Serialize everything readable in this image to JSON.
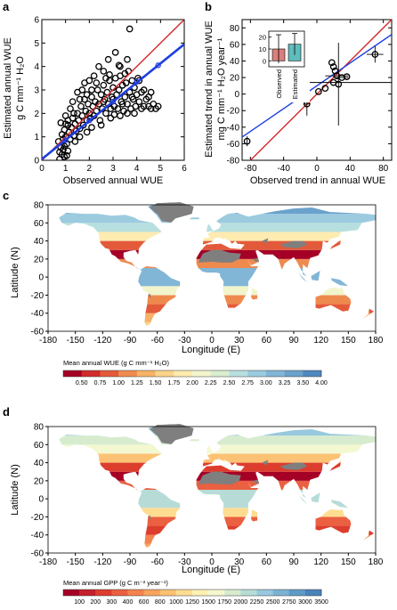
{
  "panels": {
    "a": {
      "label": "a"
    },
    "b": {
      "label": "b"
    },
    "c": {
      "label": "c"
    },
    "d": {
      "label": "d"
    }
  },
  "colors": {
    "one_to_one": "#d62728",
    "fit": "#1f3fe0",
    "land_gray": "#7f7f7f",
    "observed_bar": "#d9807d",
    "estimated_bar": "#5fbcbc"
  },
  "chart_data": [
    {
      "id": "a",
      "type": "scatter",
      "xlabel": "Observed annual WUE",
      "ylabel_line1": "Estimated annual WUE",
      "ylabel_line2": "g C mm⁻¹ H₂O",
      "xlim": [
        0,
        6
      ],
      "ylim": [
        0,
        6
      ],
      "xticks": [
        0,
        1,
        2,
        3,
        4,
        5,
        6
      ],
      "yticks": [
        0,
        1,
        2,
        3,
        4,
        5,
        6
      ],
      "one_to_one": [
        [
          0,
          0
        ],
        [
          6,
          6
        ]
      ],
      "fit_line": [
        [
          0,
          0.05
        ],
        [
          6,
          4.95
        ]
      ],
      "points": [
        [
          0.75,
          0.35
        ],
        [
          0.8,
          0.55
        ],
        [
          0.85,
          0.25
        ],
        [
          0.9,
          0.45
        ],
        [
          0.95,
          0.6
        ],
        [
          0.7,
          0.8
        ],
        [
          0.9,
          0.9
        ],
        [
          1.0,
          1.0
        ],
        [
          1.05,
          0.7
        ],
        [
          1.1,
          0.4
        ],
        [
          0.85,
          1.1
        ],
        [
          0.95,
          1.3
        ],
        [
          1.0,
          1.55
        ],
        [
          1.1,
          1.7
        ],
        [
          1.15,
          1.2
        ],
        [
          1.2,
          0.9
        ],
        [
          1.25,
          1.4
        ],
        [
          1.3,
          1.8
        ],
        [
          1.35,
          1.05
        ],
        [
          1.4,
          1.55
        ],
        [
          1.45,
          1.25
        ],
        [
          1.5,
          2.0
        ],
        [
          1.55,
          1.7
        ],
        [
          1.6,
          1.35
        ],
        [
          1.65,
          2.3
        ],
        [
          1.7,
          1.9
        ],
        [
          1.75,
          1.5
        ],
        [
          1.8,
          2.6
        ],
        [
          1.85,
          2.1
        ],
        [
          1.9,
          1.7
        ],
        [
          1.95,
          2.4
        ],
        [
          2.0,
          2.0
        ],
        [
          2.05,
          1.8
        ],
        [
          2.1,
          2.7
        ],
        [
          2.15,
          2.3
        ],
        [
          2.2,
          1.9
        ],
        [
          2.25,
          2.5
        ],
        [
          2.3,
          2.1
        ],
        [
          2.35,
          3.0
        ],
        [
          2.4,
          2.4
        ],
        [
          2.45,
          1.7
        ],
        [
          2.5,
          2.8
        ],
        [
          2.55,
          2.2
        ],
        [
          2.6,
          3.2
        ],
        [
          2.65,
          2.6
        ],
        [
          2.7,
          2.0
        ],
        [
          2.75,
          2.9
        ],
        [
          2.8,
          2.4
        ],
        [
          2.85,
          3.4
        ],
        [
          2.9,
          2.2
        ],
        [
          2.95,
          2.7
        ],
        [
          3.0,
          3.1
        ],
        [
          3.05,
          2.3
        ],
        [
          3.1,
          3.5
        ],
        [
          3.15,
          2.8
        ],
        [
          3.2,
          2.2
        ],
        [
          3.25,
          3.0
        ],
        [
          3.3,
          3.6
        ],
        [
          3.35,
          2.5
        ],
        [
          3.4,
          3.2
        ],
        [
          3.45,
          2.1
        ],
        [
          3.5,
          2.7
        ],
        [
          3.55,
          3.3
        ],
        [
          3.6,
          2.4
        ],
        [
          3.65,
          3.8
        ],
        [
          3.7,
          2.9
        ],
        [
          3.75,
          2.2
        ],
        [
          3.8,
          3.4
        ],
        [
          3.85,
          2.6
        ],
        [
          3.9,
          3.1
        ],
        [
          3.95,
          2.3
        ],
        [
          4.0,
          2.8
        ],
        [
          4.05,
          3.5
        ],
        [
          4.1,
          2.5
        ],
        [
          4.2,
          2.2
        ],
        [
          4.3,
          3.0
        ],
        [
          4.4,
          2.6
        ],
        [
          4.5,
          2.3
        ],
        [
          4.6,
          2.9
        ],
        [
          4.7,
          2.4
        ],
        [
          4.8,
          2.2
        ],
        [
          1.3,
          2.5
        ],
        [
          1.5,
          2.9
        ],
        [
          1.8,
          3.3
        ],
        [
          2.2,
          3.6
        ],
        [
          2.4,
          4.0
        ],
        [
          2.8,
          4.3
        ],
        [
          3.1,
          4.6
        ],
        [
          3.3,
          4.0
        ],
        [
          3.6,
          4.3
        ],
        [
          1.7,
          3.0
        ],
        [
          2.0,
          3.4
        ],
        [
          2.6,
          3.8
        ],
        [
          3.7,
          5.6
        ],
        [
          1.2,
          2.2
        ],
        [
          1.0,
          1.9
        ],
        [
          0.8,
          1.6
        ],
        [
          2.9,
          1.8
        ],
        [
          2.5,
          1.5
        ],
        [
          2.1,
          1.4
        ],
        [
          1.9,
          1.2
        ],
        [
          1.6,
          1.0
        ],
        [
          1.4,
          0.8
        ],
        [
          3.3,
          1.9
        ],
        [
          3.6,
          2.0
        ],
        [
          3.9,
          2.0
        ],
        [
          4.3,
          2.3
        ],
        [
          4.6,
          2.2
        ],
        [
          4.1,
          3.4
        ],
        [
          3.5,
          3.7
        ],
        [
          2.7,
          3.5
        ],
        [
          2.3,
          3.3
        ],
        [
          1.9,
          2.8
        ],
        [
          1.6,
          2.6
        ],
        [
          1.35,
          2.0
        ],
        [
          1.1,
          1.5
        ],
        [
          2.1,
          3.0
        ],
        [
          2.6,
          2.5
        ],
        [
          3.0,
          2.6
        ],
        [
          3.4,
          2.4
        ],
        [
          3.8,
          2.7
        ],
        [
          4.2,
          2.9
        ],
        [
          4.5,
          2.7
        ],
        [
          4.9,
          2.3
        ],
        [
          0.95,
          0.15
        ],
        [
          1.05,
          0.2
        ],
        [
          0.75,
          0.05
        ],
        [
          3.05,
          1.95
        ],
        [
          3.25,
          4.05
        ],
        [
          2.85,
          3.65
        ]
      ]
    },
    {
      "id": "b",
      "type": "scatter",
      "xlabel": "Observed trend in annual WUE",
      "ylabel_line1": "Estimated trend in annual WUE",
      "ylabel_line2": "mg C mm⁻¹ H₂O year⁻¹",
      "xlim": [
        -90,
        90
      ],
      "ylim": [
        -80,
        90
      ],
      "xticks": [
        -80,
        -40,
        0,
        40,
        80
      ],
      "yticks": [
        -80,
        -60,
        -40,
        -20,
        0,
        20,
        40,
        60,
        80
      ],
      "one_to_one": [
        [
          -90,
          -90
        ],
        [
          90,
          90
        ]
      ],
      "fit_line": [
        [
          -90,
          -52
        ],
        [
          90,
          72
        ]
      ],
      "points": [
        {
          "x": -84,
          "y": -57,
          "xerr": 0,
          "yerr": 6
        },
        {
          "x": -12,
          "y": -12,
          "xerr": 3,
          "yerr": 14
        },
        {
          "x": 2,
          "y": 3,
          "xerr": 0,
          "yerr": 0
        },
        {
          "x": 10,
          "y": 7,
          "xerr": 0,
          "yerr": 0
        },
        {
          "x": 18,
          "y": 38,
          "xerr": 0,
          "yerr": 0
        },
        {
          "x": 20,
          "y": 33,
          "xerr": 0,
          "yerr": 0
        },
        {
          "x": 22,
          "y": 28,
          "xerr": 0,
          "yerr": 0
        },
        {
          "x": 24,
          "y": 22,
          "xerr": 14,
          "yerr": 0
        },
        {
          "x": 26,
          "y": 12,
          "xerr": 0,
          "yerr": 50
        },
        {
          "x": 30,
          "y": 20,
          "xerr": 8,
          "yerr": 0
        },
        {
          "x": 36,
          "y": 21,
          "xerr": 0,
          "yerr": 0
        },
        {
          "x": 20,
          "y": 14,
          "xerr": 70,
          "yerr": 0
        },
        {
          "x": 70,
          "y": 48,
          "xerr": 10,
          "yerr": 10
        }
      ],
      "inset": {
        "type": "bar",
        "categories": [
          "Observed",
          "Estimated"
        ],
        "values": [
          10,
          14
        ],
        "errors": [
          12,
          9
        ],
        "ylim": [
          -5,
          25
        ],
        "yticks": [
          0,
          10,
          20
        ]
      }
    },
    {
      "id": "c",
      "type": "heatmap",
      "xlabel": "Longitude (E)",
      "ylabel": "Latitude (N)",
      "xticks": [
        -180,
        -150,
        -120,
        -90,
        -60,
        -30,
        0,
        30,
        60,
        90,
        120,
        150,
        180
      ],
      "yticks": [
        -60,
        -40,
        -20,
        0,
        20,
        40,
        60,
        80
      ],
      "colorbar_title": "Mean annual WUE (g C mm⁻¹ H₂O)",
      "colorbar_ticks": [
        "0.50",
        "0.75",
        "1.00",
        "1.25",
        "1.50",
        "1.75",
        "2.00",
        "2.25",
        "2.50",
        "2.75",
        "3.00",
        "3.25",
        "3.50",
        "4.00"
      ],
      "colorbar_colors": [
        "#a50026",
        "#d12a2a",
        "#e35a3a",
        "#ef8a4f",
        "#f7b267",
        "#fbd389",
        "#fdebb0",
        "#f2f5cc",
        "#d9eecf",
        "#b8dfdf",
        "#9ccbe0",
        "#82b6d6",
        "#6aa2cb",
        "#4f88bf"
      ]
    },
    {
      "id": "d",
      "type": "heatmap",
      "xlabel": "Longitude (E)",
      "ylabel": "Latitude (N)",
      "xticks": [
        -180,
        -150,
        -120,
        -90,
        -60,
        -30,
        0,
        30,
        60,
        90,
        120,
        150,
        180
      ],
      "yticks": [
        -60,
        -40,
        -20,
        0,
        20,
        40,
        60,
        80
      ],
      "colorbar_title": "Mean annual GPP (g C m⁻² year⁻¹)",
      "colorbar_ticks": [
        "100",
        "200",
        "300",
        "400",
        "600",
        "800",
        "1000",
        "1250",
        "1500",
        "1750",
        "2000",
        "2250",
        "2500",
        "2750",
        "3000",
        "3500"
      ],
      "colorbar_colors": [
        "#a50026",
        "#c51f2a",
        "#dd3d2d",
        "#ea6040",
        "#f4834f",
        "#f9a45e",
        "#fcc274",
        "#fedd91",
        "#fff1b4",
        "#f3f8d0",
        "#d7eccf",
        "#b7dcd7",
        "#98c8dd",
        "#7ab2d4",
        "#5f9bc8",
        "#4a82bb"
      ]
    }
  ]
}
